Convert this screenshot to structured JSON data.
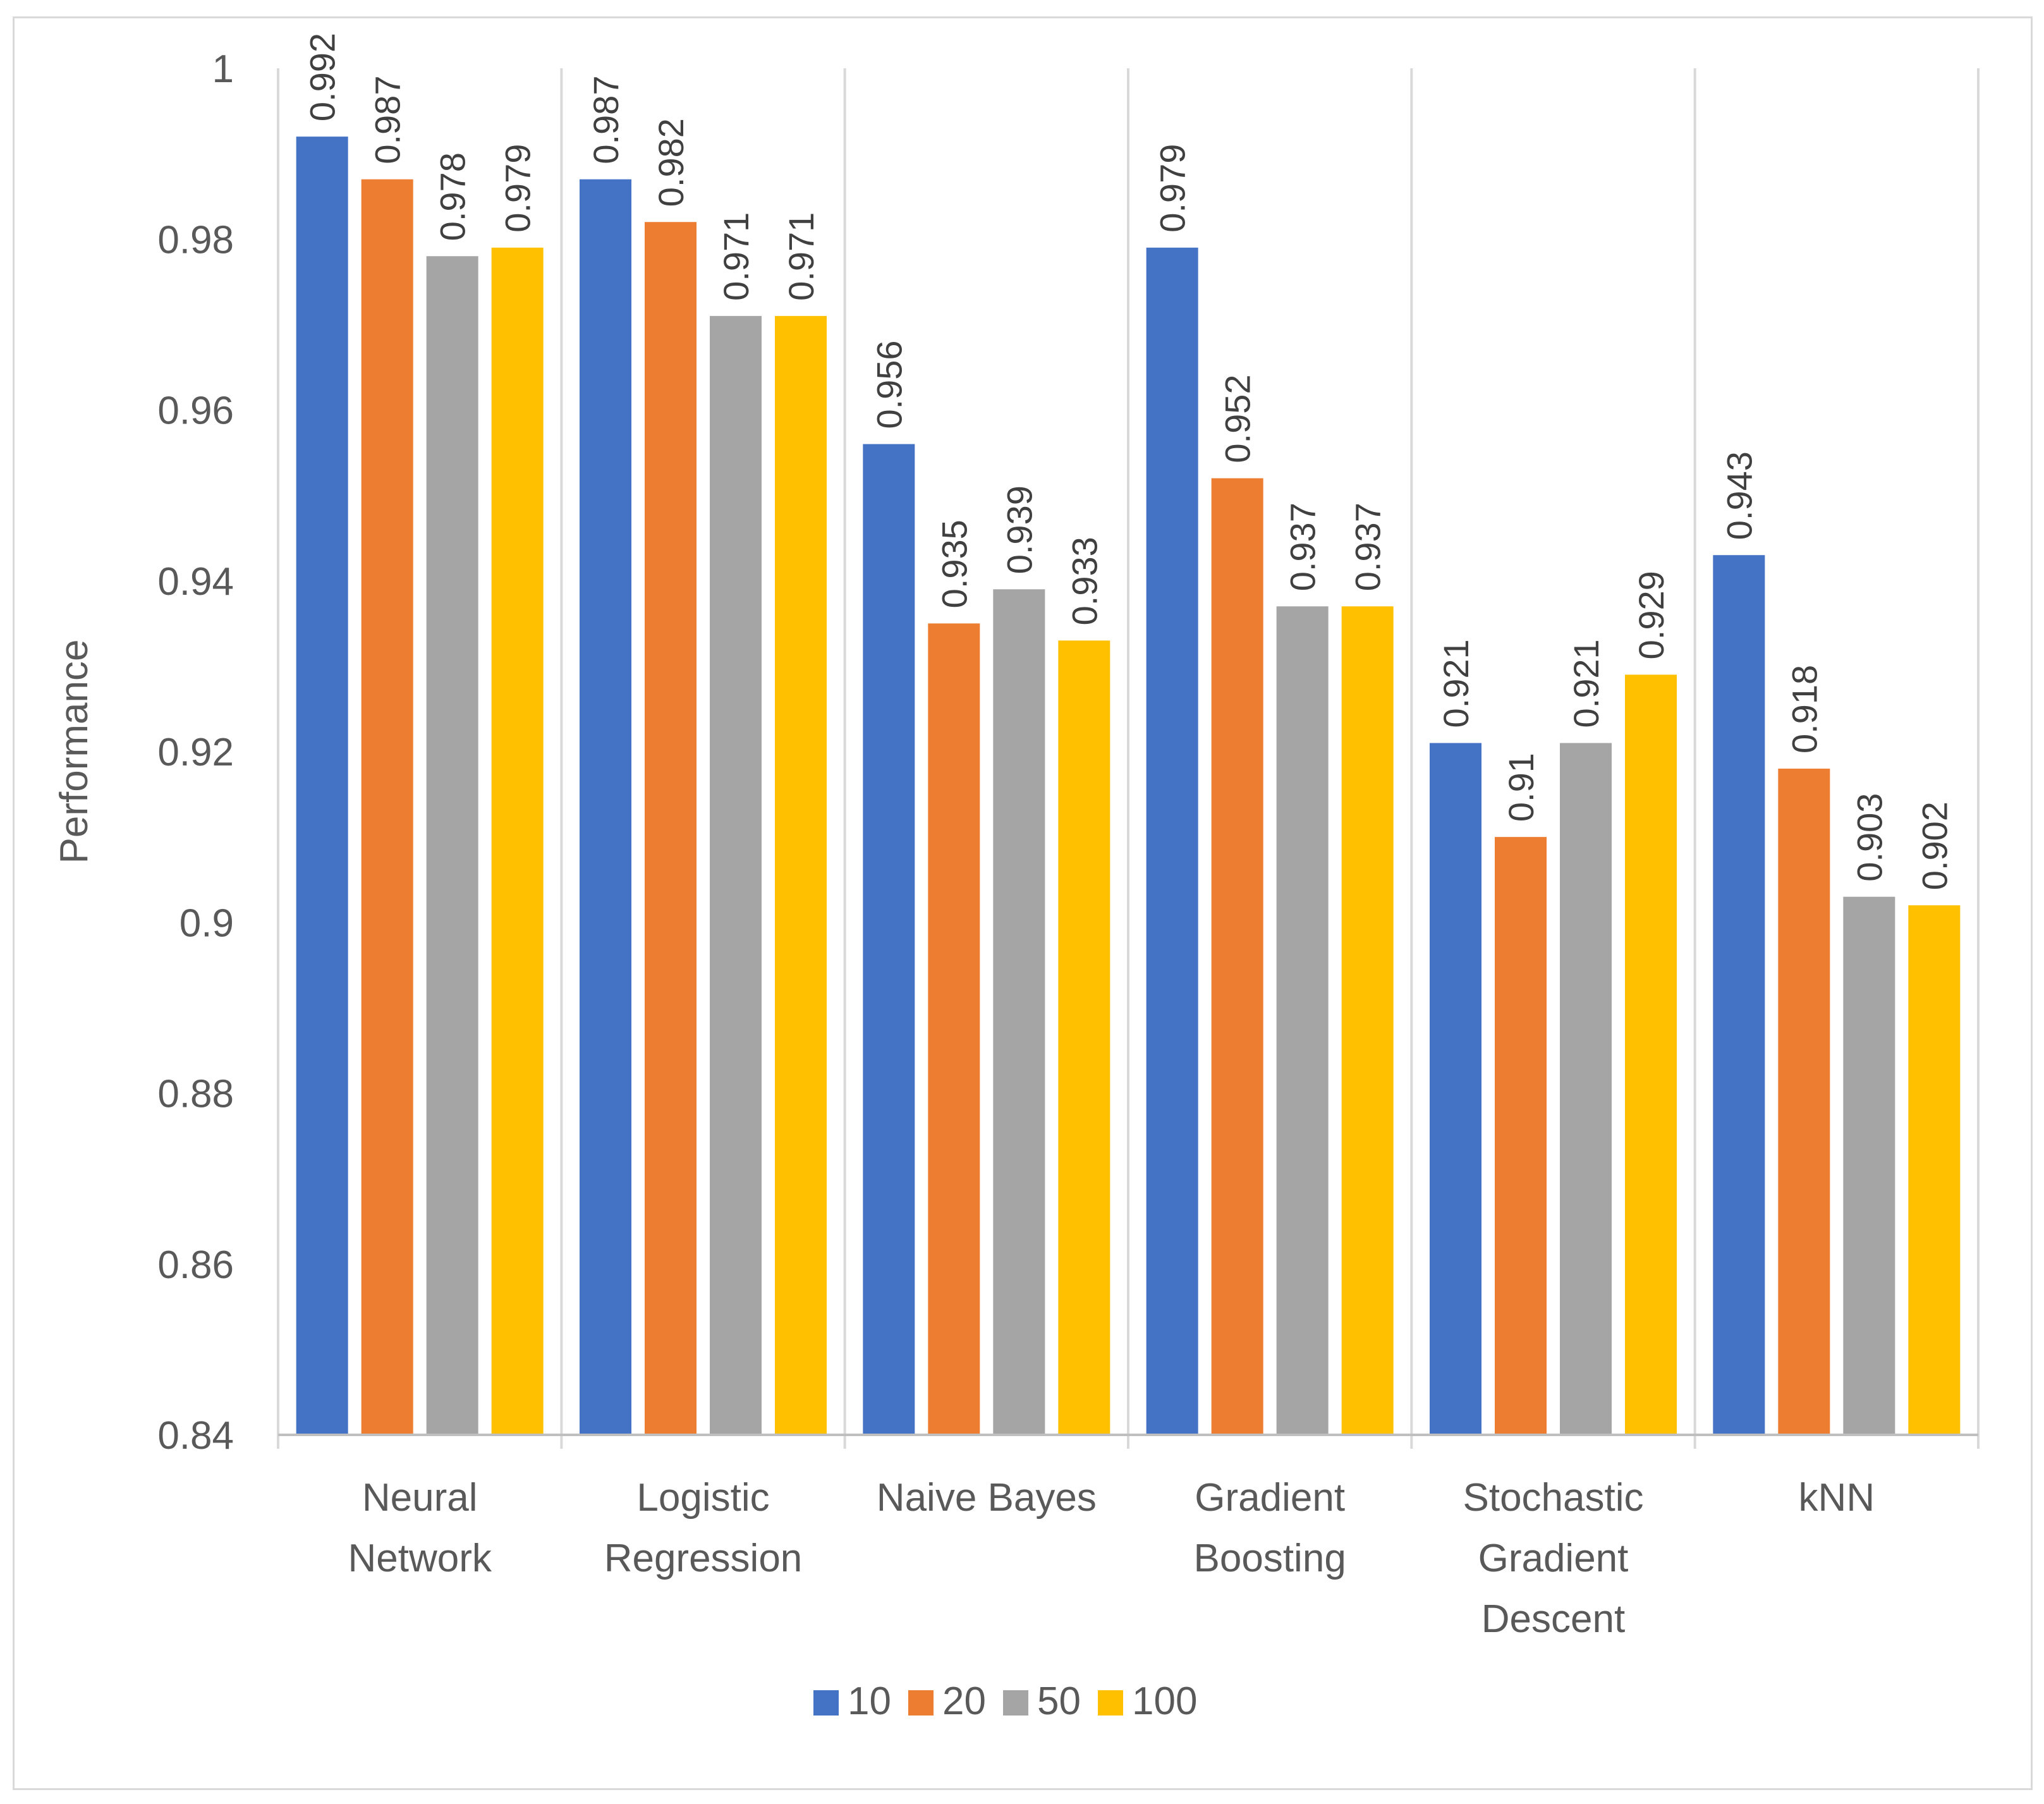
{
  "chart_data": {
    "type": "bar",
    "title": "",
    "xlabel": "",
    "ylabel": "Performance",
    "ylim": [
      0.84,
      1.0
    ],
    "yticks": [
      "0.84",
      "0.86",
      "0.88",
      "0.9",
      "0.92",
      "0.94",
      "0.96",
      "0.98",
      "1"
    ],
    "grid": true,
    "legend_position": "bottom",
    "categories": [
      [
        "Neural",
        "Network"
      ],
      [
        "Logistic",
        "Regression"
      ],
      [
        "Naive Bayes"
      ],
      [
        "Gradient",
        "Boosting"
      ],
      [
        "Stochastic",
        "Gradient",
        "Descent"
      ],
      [
        "kNN"
      ]
    ],
    "series": [
      {
        "name": "10",
        "color": "#4472C4",
        "values": [
          0.992,
          0.987,
          0.956,
          0.979,
          0.921,
          0.943
        ],
        "labels": [
          "0.992",
          "0.987",
          "0.956",
          "0.979",
          "0.921",
          "0.943"
        ]
      },
      {
        "name": "20",
        "color": "#ED7D31",
        "values": [
          0.987,
          0.982,
          0.935,
          0.952,
          0.91,
          0.918
        ],
        "labels": [
          "0.987",
          "0.982",
          "0.935",
          "0.952",
          "0.91",
          "0.918"
        ]
      },
      {
        "name": "50",
        "color": "#A5A5A5",
        "values": [
          0.978,
          0.971,
          0.939,
          0.937,
          0.921,
          0.903
        ],
        "labels": [
          "0.978",
          "0.971",
          "0.939",
          "0.937",
          "0.921",
          "0.903"
        ]
      },
      {
        "name": "100",
        "color": "#FFC000",
        "values": [
          0.979,
          0.971,
          0.933,
          0.937,
          0.929,
          0.902
        ],
        "labels": [
          "0.979",
          "0.971",
          "0.933",
          "0.937",
          "0.929",
          "0.902"
        ]
      }
    ]
  }
}
